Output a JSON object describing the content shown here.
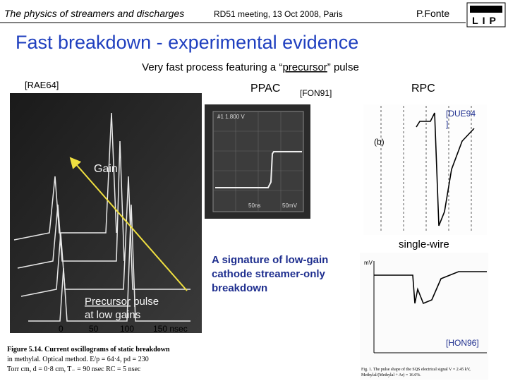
{
  "header": {
    "series_title": "The physics of streamers and discharges",
    "meeting": "RD51 meeting, 13 Oct 2008, Paris",
    "author": "P.Fonte",
    "logo": "LIP"
  },
  "title": "Fast breakdown - experimental evidence",
  "subtitle": {
    "before": "Very fast process featuring a “",
    "emphasis": "precursor",
    "after": "” pulse"
  },
  "labels": {
    "rae": "[RAE64]",
    "ppac": "PPAC",
    "fon": "[FON91]",
    "rpc": "RPC",
    "due": [
      "[DUE94",
      "]"
    ],
    "gain": "Gain",
    "single_wire": "single-wire",
    "hon": "[HON96]",
    "signature": [
      "A signature of low-gain",
      "cathode streamer-only",
      "breakdown"
    ],
    "precursor": {
      "emphasis": "Precursor",
      "rest": " pulse",
      "line2": "at low gains"
    }
  },
  "left_figure": {
    "axis": [
      "0",
      "50",
      "100",
      "150 nsec"
    ],
    "caption": [
      "Figure 5.14. Current oscillograms of static breakdown",
      "in methylal. Optical method. E/p = 64·4, pd = 230",
      "Torr cm, d = 0·8 cm, T₋ = 90 nsec  RC = 5 nsec"
    ]
  },
  "middle_figure": {
    "scope_text": "#1  1.800 V",
    "bottom_text": [
      "50ns",
      "50mV"
    ]
  },
  "rpc_figure": {
    "label": "(b)"
  },
  "wire_figure": {
    "unit": "mV",
    "caption": [
      "Fig. 1. The pulse shape of the SQS electrical signal V = 2.45 kV,",
      "Methylal/(Methylal + Ar) = 16.6%."
    ]
  }
}
